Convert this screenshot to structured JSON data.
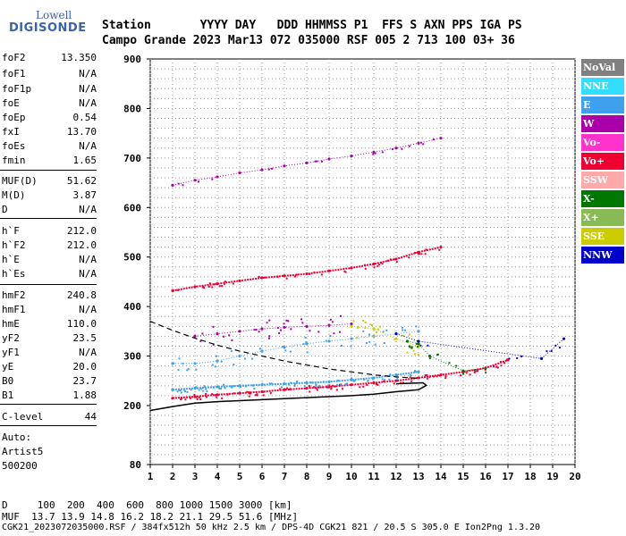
{
  "logo": {
    "line1": "Lowell",
    "line2": "DIGISONDE"
  },
  "header": {
    "row1": "Station       YYYY DAY   DDD HHMMSS P1  FFS S AXN PPS IGA PS",
    "row2": "Campo Grande 2023 Mar13 072 035000 RSF 005 2 713 100 03+ 36"
  },
  "params": [
    {
      "k": "foF2",
      "v": "13.350"
    },
    {
      "k": "foF1",
      "v": "N/A"
    },
    {
      "k": "foF1p",
      "v": "N/A"
    },
    {
      "k": "foE",
      "v": "N/A"
    },
    {
      "k": "foEp",
      "v": "0.54"
    },
    {
      "k": "fxI",
      "v": "13.70"
    },
    {
      "k": "foEs",
      "v": "N/A"
    },
    {
      "k": "fmin",
      "v": "1.65"
    },
    {
      "k": "MUF(D)",
      "v": "51.62"
    },
    {
      "k": "M(D)",
      "v": "3.87"
    },
    {
      "k": "D",
      "v": "N/A"
    },
    {
      "k": "h`F",
      "v": "212.0"
    },
    {
      "k": "h`F2",
      "v": "212.0"
    },
    {
      "k": "h`E",
      "v": "N/A"
    },
    {
      "k": "h`Es",
      "v": "N/A"
    },
    {
      "k": "hmF2",
      "v": "240.8"
    },
    {
      "k": "hmF1",
      "v": "N/A"
    },
    {
      "k": "hmE",
      "v": "110.0"
    },
    {
      "k": "yF2",
      "v": "23.5"
    },
    {
      "k": "yF1",
      "v": "N/A"
    },
    {
      "k": "yE",
      "v": "20.0"
    },
    {
      "k": "B0",
      "v": "23.7"
    },
    {
      "k": "B1",
      "v": "1.88"
    },
    {
      "k": "C-level",
      "v": "44"
    }
  ],
  "auto": {
    "line1": "Auto:",
    "line2": "Artist5",
    "line3": "500200"
  },
  "legend": [
    {
      "label": "NoVal",
      "color": "#808080"
    },
    {
      "label": "NNE",
      "color": "#33ddff"
    },
    {
      "label": "E",
      "color": "#3fa0ee"
    },
    {
      "label": "W",
      "color": "#aa00aa"
    },
    {
      "label": "Vo-",
      "color": "#ff33cc"
    },
    {
      "label": "Vo+",
      "color": "#ee0033"
    },
    {
      "label": "SSW",
      "color": "#ffaaaa"
    },
    {
      "label": "X-",
      "color": "#007700"
    },
    {
      "label": "X+",
      "color": "#88bb55"
    },
    {
      "label": "SSE",
      "color": "#cccc00"
    },
    {
      "label": "NNW",
      "color": "#0000cc"
    }
  ],
  "footer": {
    "line1": "D     100  200  400  600  800 1000 1500 3000 [km]",
    "line2": "MUF  13.7 13.9 14.8 16.2 18.2 21.1 29.5 51.6 [MHz]",
    "line3": "CGK21_2023072035000.RSF / 384fx512h 50 kHz 2.5 km / DPS-4D CGK21 821 / 20.5 S 305.0 E Ion2Png 1.3.20"
  },
  "chart_data": {
    "type": "scatter",
    "title": "",
    "xlabel": "",
    "ylabel": "",
    "xlim": [
      1,
      20
    ],
    "ylim": [
      80,
      900
    ],
    "xticks": [
      1,
      2,
      3,
      4,
      5,
      6,
      7,
      8,
      9,
      10,
      11,
      12,
      13,
      14,
      15,
      16,
      17,
      18,
      19,
      20
    ],
    "yticks": [
      80,
      200,
      300,
      400,
      500,
      600,
      700,
      800,
      900
    ],
    "grid": true,
    "traces": [
      {
        "name": "O-trace F2",
        "color": "#ee0033",
        "points": [
          [
            2,
            215
          ],
          [
            3,
            218
          ],
          [
            4,
            222
          ],
          [
            5,
            225
          ],
          [
            6,
            228
          ],
          [
            7,
            232
          ],
          [
            8,
            235
          ],
          [
            9,
            238
          ],
          [
            10,
            242
          ],
          [
            11,
            246
          ],
          [
            12,
            250
          ],
          [
            13,
            256
          ],
          [
            14,
            262
          ],
          [
            15,
            268
          ],
          [
            16,
            276
          ],
          [
            17,
            292
          ]
        ]
      },
      {
        "name": "E-trace",
        "color": "#3fa0ee",
        "points": [
          [
            2,
            232
          ],
          [
            3,
            235
          ],
          [
            4,
            238
          ],
          [
            5,
            240
          ],
          [
            6,
            242
          ],
          [
            7,
            244
          ],
          [
            8,
            246
          ],
          [
            9,
            248
          ],
          [
            10,
            252
          ],
          [
            11,
            256
          ],
          [
            12,
            262
          ],
          [
            13,
            268
          ]
        ]
      },
      {
        "name": "second hop",
        "color": "#ee0033",
        "points": [
          [
            2,
            432
          ],
          [
            3,
            440
          ],
          [
            4,
            446
          ],
          [
            5,
            452
          ],
          [
            6,
            458
          ],
          [
            7,
            462
          ],
          [
            8,
            466
          ],
          [
            9,
            472
          ],
          [
            10,
            478
          ],
          [
            11,
            486
          ],
          [
            12,
            496
          ],
          [
            13,
            510
          ],
          [
            14,
            520
          ]
        ]
      },
      {
        "name": "third hop",
        "color": "#aa00aa",
        "points": [
          [
            2,
            645
          ],
          [
            3,
            655
          ],
          [
            4,
            662
          ],
          [
            5,
            670
          ],
          [
            6,
            676
          ],
          [
            7,
            684
          ],
          [
            8,
            690
          ],
          [
            9,
            698
          ],
          [
            10,
            704
          ],
          [
            11,
            712
          ],
          [
            12,
            720
          ],
          [
            13,
            730
          ],
          [
            14,
            740
          ]
        ]
      },
      {
        "name": "spread W",
        "color": "#aa00aa",
        "points": [
          [
            3,
            340
          ],
          [
            4,
            345
          ],
          [
            5,
            350
          ],
          [
            6,
            355
          ],
          [
            7,
            358
          ],
          [
            8,
            360
          ],
          [
            9,
            362
          ],
          [
            10,
            365
          ]
        ]
      },
      {
        "name": "spread E",
        "color": "#3fa0ee",
        "points": [
          [
            2,
            285
          ],
          [
            3,
            285
          ],
          [
            4,
            290
          ],
          [
            5,
            300
          ],
          [
            6,
            310
          ],
          [
            7,
            318
          ],
          [
            8,
            325
          ],
          [
            9,
            330
          ],
          [
            10,
            335
          ],
          [
            11,
            340
          ],
          [
            12,
            345
          ],
          [
            13,
            350
          ]
        ]
      },
      {
        "name": "spread SSE",
        "color": "#cccc00",
        "points": [
          [
            10,
            360
          ],
          [
            11,
            355
          ],
          [
            12,
            335
          ],
          [
            13,
            320
          ]
        ]
      },
      {
        "name": "spread NNW",
        "color": "#0000cc",
        "points": [
          [
            12,
            345
          ],
          [
            13,
            330
          ],
          [
            18.5,
            295
          ],
          [
            19.5,
            335
          ]
        ]
      },
      {
        "name": "spread X",
        "color": "#007700",
        "points": [
          [
            12.5,
            330
          ],
          [
            13,
            325
          ],
          [
            13.5,
            300
          ],
          [
            15,
            270
          ],
          [
            16,
            275
          ]
        ]
      }
    ],
    "profile": {
      "name": "Electron density profile",
      "color": "#000000",
      "points": [
        [
          1,
          190
        ],
        [
          2,
          198
        ],
        [
          3,
          205
        ],
        [
          4,
          208
        ],
        [
          5,
          210
        ],
        [
          6,
          212
        ],
        [
          7,
          214
        ],
        [
          8,
          216
        ],
        [
          9,
          218
        ],
        [
          10,
          220
        ],
        [
          11,
          223
        ],
        [
          12,
          228
        ],
        [
          13,
          232
        ],
        [
          13.35,
          240.8
        ],
        [
          13.2,
          246
        ],
        [
          12,
          244
        ]
      ]
    },
    "dashed": {
      "name": "Model profile",
      "color": "#000000",
      "points": [
        [
          1,
          370
        ],
        [
          2,
          352
        ],
        [
          3,
          336
        ],
        [
          4,
          322
        ],
        [
          5,
          310
        ],
        [
          6,
          300
        ],
        [
          7,
          290
        ],
        [
          8,
          282
        ],
        [
          9,
          274
        ],
        [
          10,
          268
        ],
        [
          11,
          262
        ],
        [
          12,
          258
        ],
        [
          13,
          255
        ]
      ]
    }
  }
}
